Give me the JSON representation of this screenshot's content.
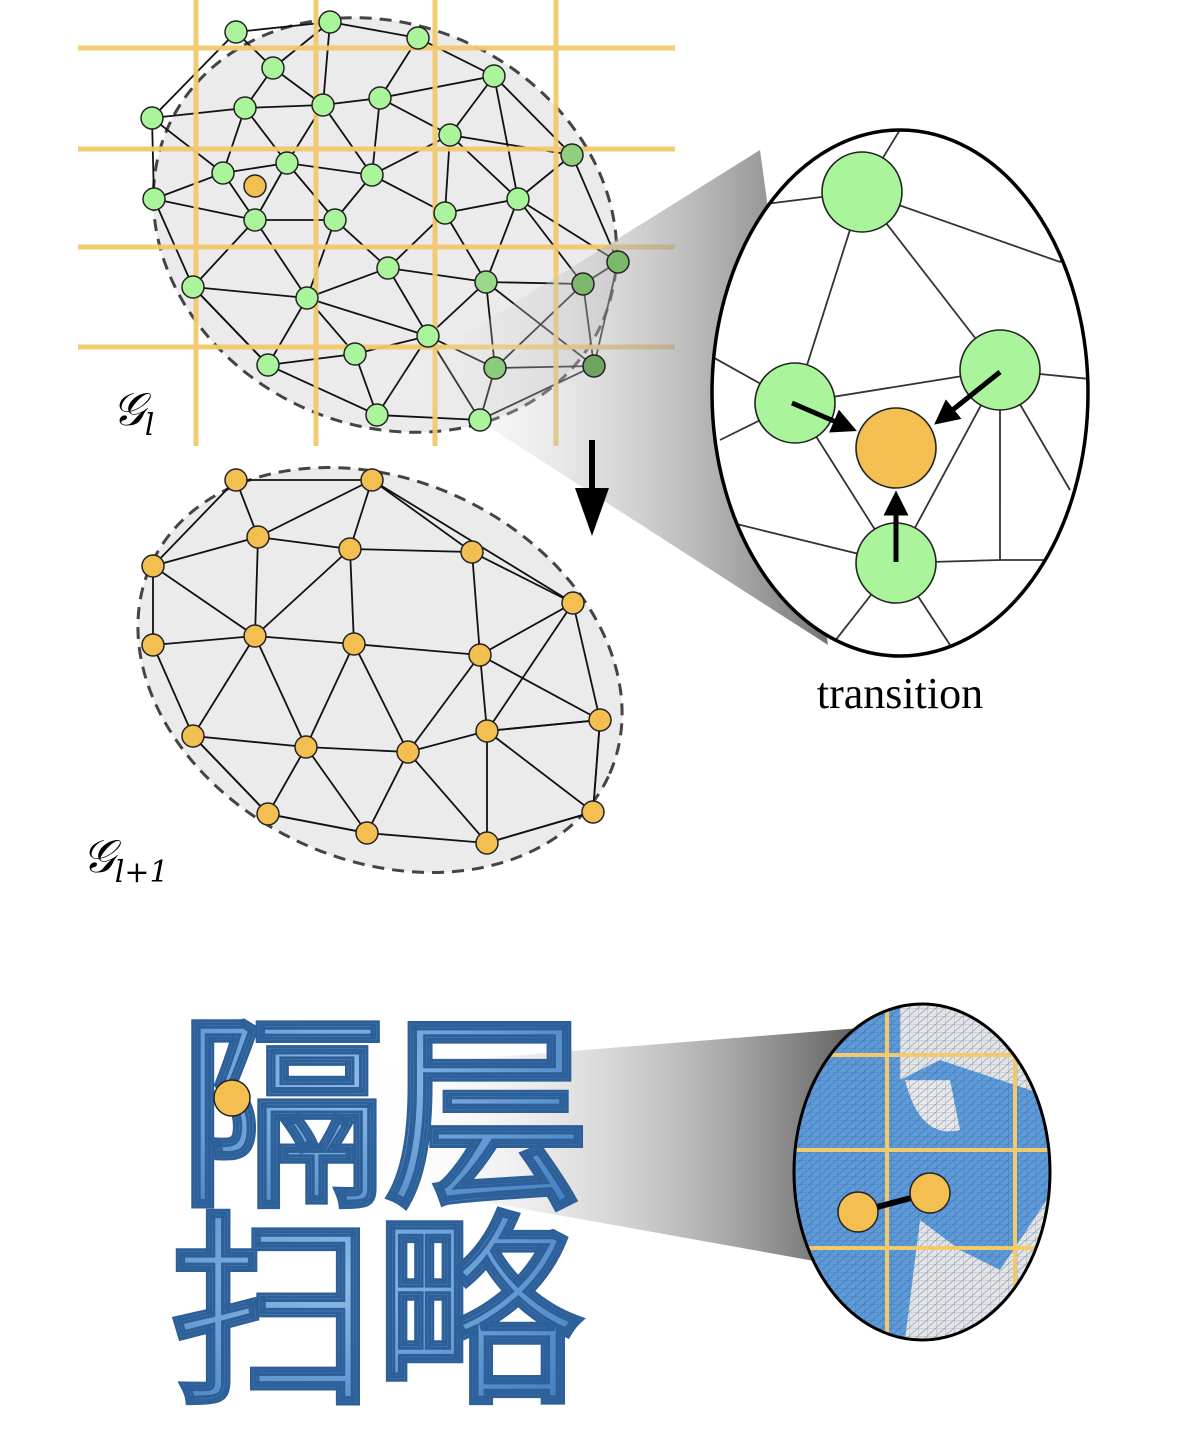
{
  "labels": {
    "graph_top": "𝒢",
    "graph_top_sub": "l",
    "graph_bottom": "𝒢",
    "graph_bottom_sub": "l+1",
    "zoom_caption": "transition",
    "glyph_top": "隔层",
    "glyph_bottom": "扫略"
  },
  "colors": {
    "grid": "#f2c96b",
    "fine_node": "#aaf59b",
    "coarse_node": "#f2bf50",
    "mesh_fill": "#ebebeb",
    "edge": "#111111",
    "shape_blue": "#5a93cf"
  }
}
